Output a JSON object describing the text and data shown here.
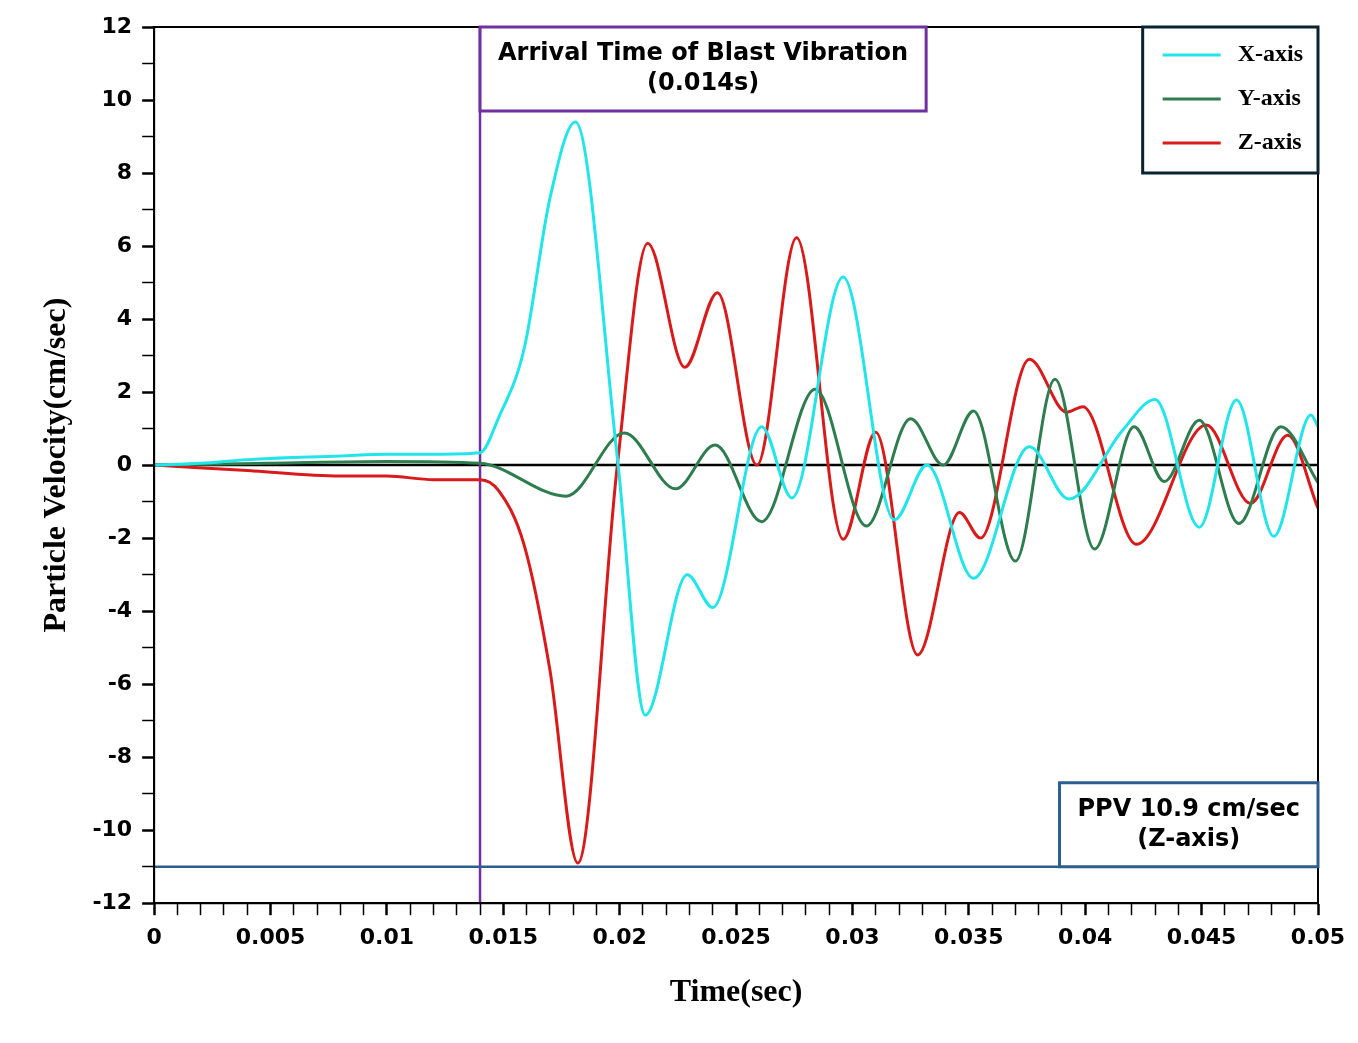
{
  "chart_data": {
    "type": "line",
    "xlabel": "Time(sec)",
    "ylabel": "Particle Velocity(cm/sec)",
    "xlim": [
      0,
      0.05
    ],
    "ylim": [
      -12,
      12
    ],
    "xticks": [
      0,
      {
        "value": 0.001,
        "label": null
      },
      {
        "value": 0.002,
        "label": null
      },
      {
        "value": 0.003,
        "label": null
      },
      {
        "value": 0.004,
        "label": null
      },
      0.005,
      {
        "value": 0.006,
        "label": null
      },
      {
        "value": 0.007,
        "label": null
      },
      {
        "value": 0.008,
        "label": null
      },
      {
        "value": 0.009,
        "label": null
      },
      0.01,
      {
        "value": 0.011,
        "label": null
      },
      {
        "value": 0.012,
        "label": null
      },
      {
        "value": 0.013,
        "label": null
      },
      {
        "value": 0.014,
        "label": null
      },
      0.015,
      {
        "value": 0.016,
        "label": null
      },
      {
        "value": 0.017,
        "label": null
      },
      {
        "value": 0.018,
        "label": null
      },
      {
        "value": 0.019,
        "label": null
      },
      0.02,
      {
        "value": 0.021,
        "label": null
      },
      {
        "value": 0.022,
        "label": null
      },
      {
        "value": 0.023,
        "label": null
      },
      {
        "value": 0.024,
        "label": null
      },
      0.025,
      {
        "value": 0.026,
        "label": null
      },
      {
        "value": 0.027,
        "label": null
      },
      {
        "value": 0.028,
        "label": null
      },
      {
        "value": 0.029,
        "label": null
      },
      0.03,
      {
        "value": 0.031,
        "label": null
      },
      {
        "value": 0.032,
        "label": null
      },
      {
        "value": 0.033,
        "label": null
      },
      {
        "value": 0.034,
        "label": null
      },
      0.035,
      {
        "value": 0.036,
        "label": null
      },
      {
        "value": 0.037,
        "label": null
      },
      {
        "value": 0.038,
        "label": null
      },
      {
        "value": 0.039,
        "label": null
      },
      0.04,
      {
        "value": 0.041,
        "label": null
      },
      {
        "value": 0.042,
        "label": null
      },
      {
        "value": 0.043,
        "label": null
      },
      {
        "value": 0.044,
        "label": null
      },
      0.045,
      {
        "value": 0.046,
        "label": null
      },
      {
        "value": 0.047,
        "label": null
      },
      {
        "value": 0.048,
        "label": null
      },
      {
        "value": 0.049,
        "label": null
      },
      0.05
    ],
    "yticks": [
      -12,
      {
        "value": -11,
        "label": null
      },
      -10,
      {
        "value": -9,
        "label": null
      },
      -8,
      {
        "value": -7,
        "label": null
      },
      -6,
      {
        "value": -5,
        "label": null
      },
      -4,
      {
        "value": -3,
        "label": null
      },
      -2,
      {
        "value": -1,
        "label": null
      },
      0,
      {
        "value": 1,
        "label": null
      },
      2,
      {
        "value": 3,
        "label": null
      },
      4,
      {
        "value": 5,
        "label": null
      },
      6,
      {
        "value": 7,
        "label": null
      },
      8,
      {
        "value": 9,
        "label": null
      },
      10,
      {
        "value": 11,
        "label": null
      },
      12
    ],
    "grid": false,
    "legend": "top right",
    "marker": "none",
    "line_style": "solid",
    "series": [
      {
        "name": "X-axis",
        "color": "#22e5ea",
        "x": [
          0,
          0.002,
          0.004,
          0.008,
          0.01,
          0.012,
          0.014,
          0.0148,
          0.0159,
          0.017,
          0.0181,
          0.0199,
          0.0211,
          0.0229,
          0.024,
          0.0261,
          0.0274,
          0.0296,
          0.0318,
          0.0332,
          0.0352,
          0.0376,
          0.0393,
          0.0416,
          0.043,
          0.0449,
          0.0465,
          0.0481,
          0.0497,
          0.05
        ],
        "values": [
          0,
          0.05,
          0.15,
          0.25,
          0.3,
          0.3,
          0.34,
          1.3,
          3.2,
          7.3,
          9.4,
          0.2,
          -6.85,
          -3.0,
          -3.9,
          1.05,
          -0.9,
          5.15,
          -1.5,
          0.0,
          -3.1,
          0.5,
          -0.93,
          0.95,
          1.8,
          -1.7,
          1.78,
          -1.95,
          1.37,
          1.05
        ]
      },
      {
        "name": "Y-axis",
        "color": "#2e7d4f",
        "x": [
          0,
          0.005,
          0.01,
          0.014,
          0.0177,
          0.0202,
          0.0224,
          0.0241,
          0.0261,
          0.0284,
          0.0306,
          0.0325,
          0.0339,
          0.0352,
          0.037,
          0.0387,
          0.0404,
          0.0421,
          0.0434,
          0.0449,
          0.0466,
          0.0484,
          0.05
        ],
        "values": [
          0,
          0.05,
          0.1,
          0.05,
          -0.85,
          0.88,
          -0.65,
          0.55,
          -1.55,
          2.08,
          -1.67,
          1.27,
          0,
          1.48,
          -2.63,
          2.35,
          -2.3,
          1.05,
          -0.45,
          1.23,
          -1.6,
          1.05,
          -0.48
        ]
      },
      {
        "name": "Z-axis",
        "color": "#d91a1a",
        "x": [
          0,
          0.004,
          0.008,
          0.01,
          0.012,
          0.014,
          0.0148,
          0.0159,
          0.017,
          0.0182,
          0.0199,
          0.0212,
          0.0228,
          0.0242,
          0.0259,
          0.0276,
          0.0296,
          0.031,
          0.0328,
          0.0346,
          0.0355,
          0.0376,
          0.0392,
          0.0399,
          0.0422,
          0.0452,
          0.0471,
          0.0487,
          0.05
        ],
        "values": [
          0,
          -0.15,
          -0.3,
          -0.3,
          -0.4,
          -0.4,
          -0.7,
          -2.2,
          -5.6,
          -10.9,
          0,
          6.08,
          2.68,
          4.72,
          0,
          6.23,
          -2.03,
          0.9,
          -5.2,
          -1.3,
          -2.0,
          2.9,
          1.45,
          1.6,
          -2.17,
          1.1,
          -1.05,
          0.82,
          -1.18
        ]
      }
    ],
    "ref_lines": [
      {
        "axis": "y",
        "value": 0,
        "color": "#000000",
        "line_style": "solid"
      },
      {
        "axis": "x",
        "value": 0.014,
        "label": "Arrival Time of Blast Vibration\n(0.014s)",
        "color": "#7030a0",
        "line_style": "solid"
      },
      {
        "axis": "y",
        "value": -11,
        "label": "PPV 10.9 cm/sec\n(Z-axis)",
        "color": "#2e5e8e",
        "line_style": "solid"
      }
    ]
  }
}
